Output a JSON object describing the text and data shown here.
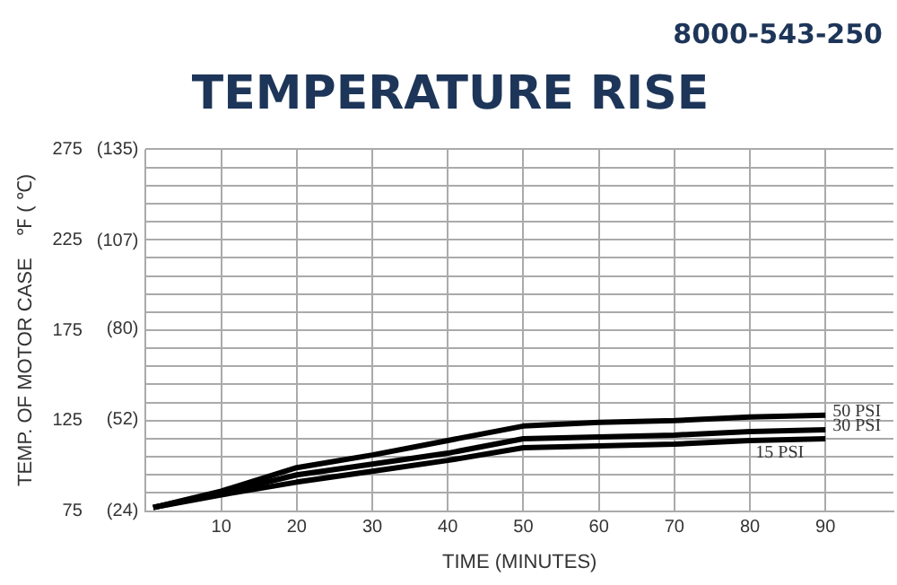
{
  "chart_data": {
    "type": "line",
    "title": "TEMPERATURE RISE",
    "xlabel": "TIME (MINUTES)",
    "ylabel": "TEMP. OF MOTOR CASE    ℉ ( ℃)",
    "annotations": [
      "8000-543-250"
    ],
    "x": [
      1,
      10,
      20,
      30,
      40,
      50,
      60,
      70,
      80,
      90
    ],
    "series": [
      {
        "name": "50 PSI",
        "color": "#000000",
        "values": [
          77,
          86,
          99,
          106,
          114,
          122,
          124,
          125,
          127,
          128
        ]
      },
      {
        "name": "30 PSI",
        "color": "#000000",
        "values": [
          77,
          85,
          95,
          101,
          107,
          115,
          116,
          117,
          119,
          120
        ]
      },
      {
        "name": "15 PSI",
        "color": "#000000",
        "values": [
          77,
          84,
          91,
          97,
          103,
          110,
          111,
          112,
          114,
          115
        ]
      }
    ],
    "xlim": [
      0,
      99
    ],
    "xticks": [
      {
        "value": 0,
        "label": null
      },
      10,
      20,
      30,
      40,
      50,
      60,
      70,
      80,
      90
    ],
    "ylim": [
      75,
      275
    ],
    "yticks": [
      75,
      {
        "value": 85,
        "label": null
      },
      {
        "value": 95,
        "label": null
      },
      {
        "value": 105,
        "label": null
      },
      {
        "value": 115,
        "label": null
      },
      125,
      {
        "value": 135,
        "label": null
      },
      {
        "value": 145,
        "label": null
      },
      {
        "value": 155,
        "label": null
      },
      {
        "value": 165,
        "label": null
      },
      175,
      {
        "value": 185,
        "label": null
      },
      {
        "value": 195,
        "label": null
      },
      {
        "value": 205,
        "label": null
      },
      {
        "value": 215,
        "label": null
      },
      225,
      {
        "value": 235,
        "label": null
      },
      {
        "value": 245,
        "label": null
      },
      {
        "value": 255,
        "label": null
      },
      {
        "value": 265,
        "label": null
      },
      275
    ],
    "y2lim": [
      23.9,
      135
    ],
    "y2ticks": [
      {
        "value": 24,
        "label": "(24)"
      },
      {
        "value": 52,
        "label": "(52)"
      },
      {
        "value": 80,
        "label": "(80)"
      },
      {
        "value": 107,
        "label": "(107)"
      },
      {
        "value": 135,
        "label": "(135)"
      }
    ],
    "grid": true,
    "legend": false,
    "marker": "none",
    "line_style": "solid"
  }
}
